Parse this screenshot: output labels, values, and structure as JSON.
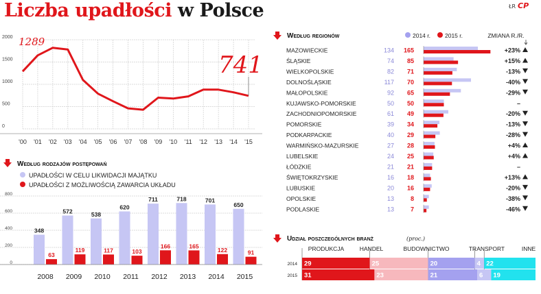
{
  "header": {
    "title_red": "Liczba upadłości",
    "title_black": "w Polsce",
    "source": "ŁR",
    "logo": "CP"
  },
  "colors": {
    "red": "#e0161b",
    "lavender": "#c6c6f4",
    "pink": "#f7b8bd",
    "purple": "#a4a1ef",
    "cyan": "#22e2ee",
    "grid": "#d0d0d0"
  },
  "chart_data": [
    {
      "id": "line",
      "type": "line",
      "x_ticks": [
        "'00",
        "'01",
        "'02",
        "'03",
        "'04",
        "'05",
        "'06",
        "'07",
        "'08",
        "'09",
        "'10",
        "'11",
        "'12",
        "'13",
        "'14",
        "'15"
      ],
      "values": [
        1289,
        1650,
        1820,
        1780,
        1100,
        790,
        620,
        460,
        430,
        700,
        680,
        730,
        880,
        880,
        820,
        741
      ],
      "annotations": {
        "first": "1289",
        "last": "741"
      },
      "y_ticks": [
        "0",
        "500",
        "1000",
        "1500",
        "2000"
      ],
      "ylim": [
        0,
        2000
      ]
    },
    {
      "id": "procedures",
      "type": "bar",
      "title": "Według rodzajów postępowań",
      "legend": [
        "UPADŁOŚCI W CELU LIKWIDACJI MAJĄTKU",
        "UPADŁOŚCI Z MOŻLIWOŚCIĄ ZAWARCIA UKŁADU"
      ],
      "categories": [
        "2008",
        "2009",
        "2010",
        "2011",
        "2012",
        "2013",
        "2014",
        "2015"
      ],
      "series": [
        {
          "name": "UPADŁOŚCI W CELU LIKWIDACJI MAJĄTKU",
          "values": [
            348,
            572,
            538,
            620,
            711,
            718,
            701,
            650
          ]
        },
        {
          "name": "UPADŁOŚCI Z MOŻLIWOŚCIĄ ZAWARCIA UKŁADU",
          "values": [
            63,
            119,
            117,
            103,
            166,
            165,
            122,
            91
          ]
        }
      ],
      "value_labels_a": [
        "348",
        "572",
        "538",
        "620",
        "711",
        "718",
        "701",
        "650"
      ],
      "value_labels_b": [
        "63",
        "119",
        "117",
        "103",
        "166",
        "165",
        "122",
        "91"
      ],
      "y_ticks": [
        "0",
        "200",
        "400",
        "600",
        "800"
      ],
      "ylim": [
        0,
        800
      ]
    },
    {
      "id": "regions",
      "type": "bar",
      "title": "Według regionów",
      "legend": [
        "2014 r.",
        "2015 r."
      ],
      "change_header": "ZMIANA R./R.",
      "categories": [
        "MAZOWIECKIE",
        "ŚLĄSKIE",
        "WIELKOPOLSKIE",
        "DOLNOŚLĄSKIE",
        "MAŁOPOLSKIE",
        "KUJAWSKO-POMORSKIE",
        "ZACHODNIOPOMORSKIE",
        "POMORSKIE",
        "PODKARPACKIE",
        "WARMIŃSKO-MAZURSKIE",
        "LUBELSKIE",
        "ŁÓDZKIE",
        "ŚWIĘTOKRZYSKIE",
        "LUBUSKIE",
        "OPOLSKIE",
        "PODLASKIE"
      ],
      "series": [
        {
          "name": "2014 r.",
          "values": [
            134,
            74,
            82,
            117,
            92,
            50,
            61,
            39,
            40,
            27,
            24,
            21,
            16,
            20,
            13,
            13
          ]
        },
        {
          "name": "2015 r.",
          "values": [
            165,
            85,
            71,
            70,
            65,
            50,
            49,
            34,
            29,
            28,
            25,
            21,
            18,
            16,
            8,
            7
          ]
        }
      ],
      "labels_2014": [
        "134",
        "74",
        "82",
        "117",
        "92",
        "50",
        "61",
        "39",
        "40",
        "27",
        "24",
        "21",
        "16",
        "20",
        "13",
        "13"
      ],
      "labels_2015": [
        "165",
        "85",
        "71",
        "70",
        "65",
        "50",
        "49",
        "34",
        "29",
        "28",
        "25",
        "21",
        "18",
        "16",
        "8",
        "7"
      ],
      "changes": [
        "+23%",
        "+15%",
        "-13%",
        "-40%",
        "-29%",
        "–",
        "-20%",
        "-13%",
        "-28%",
        "+4%",
        "+4%",
        "–",
        "+13%",
        "-20%",
        "-38%",
        "-46%"
      ],
      "directions": [
        "up",
        "up",
        "down",
        "down",
        "down",
        "none",
        "down",
        "down",
        "down",
        "up",
        "up",
        "none",
        "up",
        "down",
        "down",
        "down"
      ]
    },
    {
      "id": "industries",
      "type": "bar",
      "title": "Udział poszczególnych branż",
      "unit": "(proc.)",
      "categories": [
        "PRODUKCJA",
        "HANDEL",
        "BUDOWNICTWO",
        "TRANSPORT",
        "INNE"
      ],
      "rows": [
        {
          "year": "2014",
          "values": [
            29,
            25,
            20,
            4,
            22
          ],
          "labels": [
            "29",
            "25",
            "20",
            "4",
            "22"
          ]
        },
        {
          "year": "2015",
          "values": [
            31,
            23,
            21,
            6,
            19
          ],
          "labels": [
            "31",
            "23",
            "21",
            "6",
            "19"
          ]
        }
      ]
    }
  ]
}
